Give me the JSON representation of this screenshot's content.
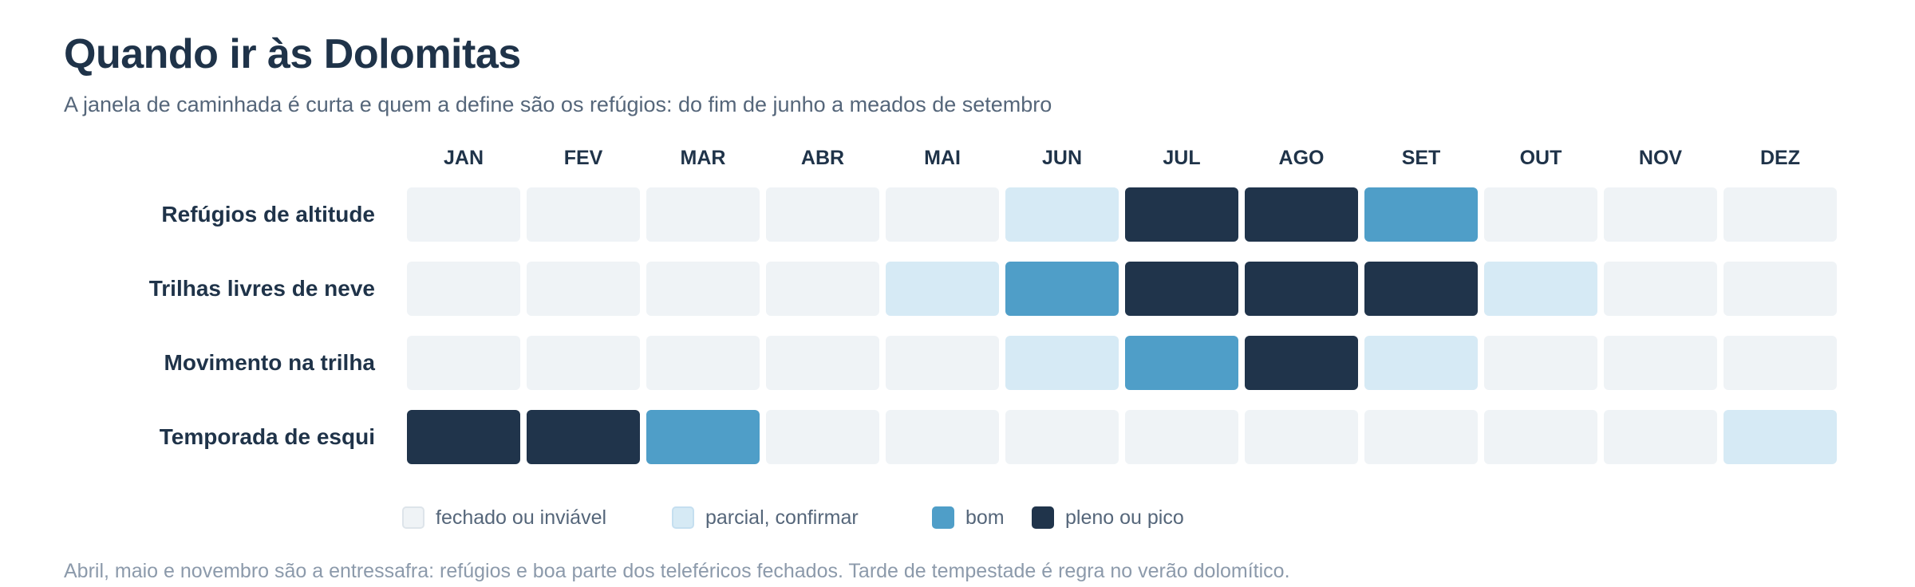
{
  "title": "Quando ir às Dolomitas",
  "subtitle": "A janela de caminhada é curta e quem a define são os refúgios: do fim de junho a meados de setembro",
  "note": "Abril, maio e novembro são a entressafra: refúgios e boa parte dos teleféricos fechados. Tarde de tempestade é regra no verão dolomítico.",
  "chart_data": {
    "type": "heatmap",
    "x": [
      "JAN",
      "FEV",
      "MAR",
      "ABR",
      "MAI",
      "JUN",
      "JUL",
      "AGO",
      "SET",
      "OUT",
      "NOV",
      "DEZ"
    ],
    "y": [
      "Refúgios de altitude",
      "Trilhas livres de neve",
      "Movimento na trilha",
      "Temporada de esqui"
    ],
    "levels": [
      "fechado ou inviável",
      "parcial, confirmar",
      "bom",
      "pleno ou pico"
    ],
    "level_colors": [
      "#eff3f6",
      "#d6eaf5",
      "#4f9ec8",
      "#20344b"
    ],
    "values": [
      [
        0,
        0,
        0,
        0,
        0,
        1,
        3,
        3,
        2,
        0,
        0,
        0
      ],
      [
        0,
        0,
        0,
        0,
        1,
        2,
        3,
        3,
        3,
        1,
        0,
        0
      ],
      [
        0,
        0,
        0,
        0,
        0,
        1,
        2,
        3,
        1,
        0,
        0,
        0
      ],
      [
        3,
        3,
        2,
        0,
        0,
        0,
        0,
        0,
        0,
        0,
        0,
        1
      ]
    ],
    "legend_position": "bottom"
  }
}
